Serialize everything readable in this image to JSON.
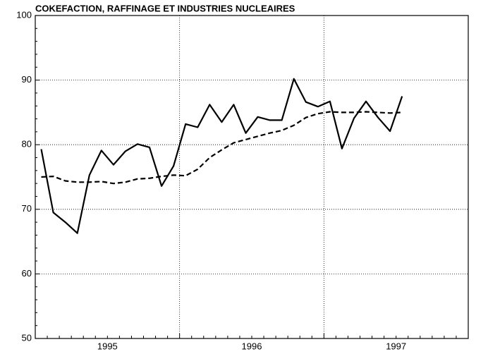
{
  "chart_data": {
    "type": "line",
    "title": "COKEFACTION, RAFFINAGE ET INDUSTRIES NUCLEAIRES",
    "categories": [
      null,
      null,
      null,
      null,
      null,
      null,
      null,
      null,
      null,
      null,
      null,
      null,
      null,
      null,
      null,
      null,
      null,
      null,
      null,
      null,
      null,
      null,
      null,
      null,
      null,
      null,
      null,
      null,
      null,
      null,
      null,
      null,
      null,
      null,
      null,
      null
    ],
    "year_labels": [
      "1995",
      "1996",
      "1997"
    ],
    "series": [
      {
        "color": "#000000",
        "dashed": false,
        "values": [
          79.3,
          69.5,
          68.0,
          66.3,
          75.3,
          79.1,
          76.9,
          79.0,
          80.1,
          79.6,
          73.6,
          76.7,
          83.2,
          82.7,
          86.2,
          83.5,
          86.2,
          81.8,
          84.3,
          83.8,
          83.8,
          90.2,
          86.6,
          85.9,
          86.7,
          79.4,
          84.1,
          86.7,
          84.2,
          82.1,
          87.5,
          null,
          null,
          null,
          null,
          null
        ]
      },
      {
        "color": "#000000",
        "dashed": true,
        "values": [
          75.0,
          75.1,
          74.4,
          74.2,
          74.2,
          74.3,
          74.0,
          74.2,
          74.7,
          74.8,
          75.1,
          75.3,
          75.2,
          76.2,
          78.0,
          79.2,
          80.3,
          80.8,
          81.3,
          81.8,
          82.2,
          83.0,
          84.2,
          84.8,
          85.1,
          85.0,
          85.0,
          85.1,
          85.0,
          84.9,
          85.0,
          null,
          null,
          null,
          null,
          null
        ]
      }
    ],
    "ylim": [
      50,
      100
    ],
    "yticks": [
      50,
      60,
      70,
      80,
      90,
      100
    ],
    "grid": true
  }
}
